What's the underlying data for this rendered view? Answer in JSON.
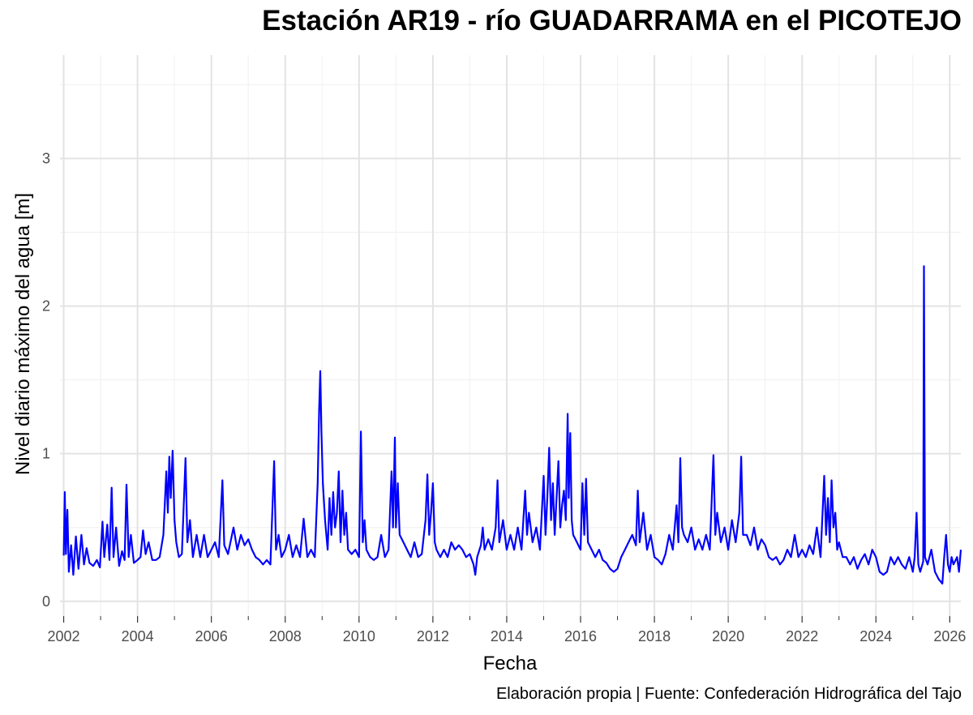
{
  "chart_data": {
    "type": "line",
    "title": "Estación AR19 - río GUADARRAMA en el PICOTEJO",
    "xlabel": "Fecha",
    "ylabel": "Nivel diario máximo del agua [m]",
    "caption": "Elaboración propia | Fuente: Confederación Hidrográfica del Tajo",
    "xlim": [
      2001.9,
      2026.3
    ],
    "ylim": [
      -0.1,
      3.7
    ],
    "x_ticks": [
      "2002",
      "2004",
      "2006",
      "2008",
      "2010",
      "2012",
      "2014",
      "2016",
      "2018",
      "2020",
      "2022",
      "2024",
      "2026"
    ],
    "y_ticks": [
      "0",
      "1",
      "2",
      "3"
    ],
    "grid": true,
    "line_color": "#0000ff",
    "series": [
      {
        "points": [
          [
            2002.0,
            0.31
          ],
          [
            2002.03,
            0.74
          ],
          [
            2002.06,
            0.32
          ],
          [
            2002.1,
            0.62
          ],
          [
            2002.14,
            0.2
          ],
          [
            2002.2,
            0.38
          ],
          [
            2002.26,
            0.18
          ],
          [
            2002.33,
            0.44
          ],
          [
            2002.4,
            0.22
          ],
          [
            2002.48,
            0.45
          ],
          [
            2002.55,
            0.25
          ],
          [
            2002.62,
            0.36
          ],
          [
            2002.7,
            0.26
          ],
          [
            2002.8,
            0.24
          ],
          [
            2002.9,
            0.28
          ],
          [
            2002.98,
            0.23
          ],
          [
            2003.05,
            0.54
          ],
          [
            2003.1,
            0.3
          ],
          [
            2003.18,
            0.52
          ],
          [
            2003.24,
            0.28
          ],
          [
            2003.3,
            0.77
          ],
          [
            2003.35,
            0.3
          ],
          [
            2003.42,
            0.5
          ],
          [
            2003.5,
            0.24
          ],
          [
            2003.58,
            0.34
          ],
          [
            2003.65,
            0.28
          ],
          [
            2003.7,
            0.79
          ],
          [
            2003.76,
            0.3
          ],
          [
            2003.82,
            0.45
          ],
          [
            2003.9,
            0.26
          ],
          [
            2004.0,
            0.28
          ],
          [
            2004.08,
            0.3
          ],
          [
            2004.15,
            0.48
          ],
          [
            2004.22,
            0.32
          ],
          [
            2004.3,
            0.4
          ],
          [
            2004.4,
            0.28
          ],
          [
            2004.5,
            0.28
          ],
          [
            2004.6,
            0.3
          ],
          [
            2004.7,
            0.45
          ],
          [
            2004.78,
            0.88
          ],
          [
            2004.82,
            0.6
          ],
          [
            2004.86,
            0.98
          ],
          [
            2004.9,
            0.7
          ],
          [
            2004.95,
            1.02
          ],
          [
            2005.0,
            0.55
          ],
          [
            2005.05,
            0.4
          ],
          [
            2005.12,
            0.3
          ],
          [
            2005.2,
            0.32
          ],
          [
            2005.3,
            0.97
          ],
          [
            2005.35,
            0.4
          ],
          [
            2005.42,
            0.55
          ],
          [
            2005.5,
            0.3
          ],
          [
            2005.6,
            0.45
          ],
          [
            2005.7,
            0.3
          ],
          [
            2005.8,
            0.45
          ],
          [
            2005.9,
            0.3
          ],
          [
            2006.0,
            0.35
          ],
          [
            2006.1,
            0.4
          ],
          [
            2006.2,
            0.3
          ],
          [
            2006.3,
            0.82
          ],
          [
            2006.35,
            0.38
          ],
          [
            2006.45,
            0.32
          ],
          [
            2006.6,
            0.5
          ],
          [
            2006.7,
            0.35
          ],
          [
            2006.8,
            0.45
          ],
          [
            2006.9,
            0.38
          ],
          [
            2007.0,
            0.42
          ],
          [
            2007.1,
            0.35
          ],
          [
            2007.2,
            0.3
          ],
          [
            2007.3,
            0.28
          ],
          [
            2007.4,
            0.25
          ],
          [
            2007.5,
            0.28
          ],
          [
            2007.6,
            0.25
          ],
          [
            2007.7,
            0.95
          ],
          [
            2007.75,
            0.35
          ],
          [
            2007.82,
            0.45
          ],
          [
            2007.9,
            0.3
          ],
          [
            2008.0,
            0.35
          ],
          [
            2008.1,
            0.45
          ],
          [
            2008.2,
            0.3
          ],
          [
            2008.3,
            0.38
          ],
          [
            2008.4,
            0.3
          ],
          [
            2008.5,
            0.56
          ],
          [
            2008.6,
            0.3
          ],
          [
            2008.7,
            0.35
          ],
          [
            2008.8,
            0.3
          ],
          [
            2008.88,
            0.8
          ],
          [
            2008.92,
            1.3
          ],
          [
            2008.95,
            1.56
          ],
          [
            2008.98,
            1.15
          ],
          [
            2009.02,
            0.8
          ],
          [
            2009.08,
            0.55
          ],
          [
            2009.15,
            0.35
          ],
          [
            2009.2,
            0.7
          ],
          [
            2009.25,
            0.45
          ],
          [
            2009.3,
            0.74
          ],
          [
            2009.35,
            0.5
          ],
          [
            2009.4,
            0.6
          ],
          [
            2009.45,
            0.88
          ],
          [
            2009.5,
            0.4
          ],
          [
            2009.55,
            0.75
          ],
          [
            2009.6,
            0.45
          ],
          [
            2009.65,
            0.6
          ],
          [
            2009.7,
            0.35
          ],
          [
            2009.8,
            0.32
          ],
          [
            2009.9,
            0.35
          ],
          [
            2010.0,
            0.3
          ],
          [
            2010.05,
            1.15
          ],
          [
            2010.1,
            0.4
          ],
          [
            2010.15,
            0.55
          ],
          [
            2010.2,
            0.35
          ],
          [
            2010.3,
            0.3
          ],
          [
            2010.4,
            0.28
          ],
          [
            2010.5,
            0.3
          ],
          [
            2010.6,
            0.45
          ],
          [
            2010.7,
            0.3
          ],
          [
            2010.8,
            0.35
          ],
          [
            2010.88,
            0.88
          ],
          [
            2010.92,
            0.5
          ],
          [
            2010.97,
            1.11
          ],
          [
            2011.0,
            0.5
          ],
          [
            2011.05,
            0.8
          ],
          [
            2011.1,
            0.45
          ],
          [
            2011.2,
            0.4
          ],
          [
            2011.3,
            0.35
          ],
          [
            2011.4,
            0.3
          ],
          [
            2011.5,
            0.4
          ],
          [
            2011.6,
            0.3
          ],
          [
            2011.7,
            0.32
          ],
          [
            2011.8,
            0.55
          ],
          [
            2011.85,
            0.86
          ],
          [
            2011.9,
            0.45
          ],
          [
            2011.95,
            0.6
          ],
          [
            2012.0,
            0.8
          ],
          [
            2012.05,
            0.4
          ],
          [
            2012.1,
            0.35
          ],
          [
            2012.2,
            0.3
          ],
          [
            2012.3,
            0.35
          ],
          [
            2012.4,
            0.3
          ],
          [
            2012.5,
            0.4
          ],
          [
            2012.6,
            0.35
          ],
          [
            2012.7,
            0.38
          ],
          [
            2012.8,
            0.35
          ],
          [
            2012.9,
            0.3
          ],
          [
            2013.0,
            0.32
          ],
          [
            2013.1,
            0.25
          ],
          [
            2013.15,
            0.18
          ],
          [
            2013.2,
            0.3
          ],
          [
            2013.3,
            0.38
          ],
          [
            2013.35,
            0.5
          ],
          [
            2013.4,
            0.35
          ],
          [
            2013.5,
            0.42
          ],
          [
            2013.6,
            0.35
          ],
          [
            2013.7,
            0.5
          ],
          [
            2013.75,
            0.82
          ],
          [
            2013.8,
            0.4
          ],
          [
            2013.9,
            0.55
          ],
          [
            2014.0,
            0.35
          ],
          [
            2014.1,
            0.45
          ],
          [
            2014.2,
            0.35
          ],
          [
            2014.3,
            0.5
          ],
          [
            2014.4,
            0.35
          ],
          [
            2014.5,
            0.75
          ],
          [
            2014.55,
            0.45
          ],
          [
            2014.6,
            0.6
          ],
          [
            2014.7,
            0.4
          ],
          [
            2014.8,
            0.5
          ],
          [
            2014.9,
            0.35
          ],
          [
            2015.0,
            0.85
          ],
          [
            2015.05,
            0.45
          ],
          [
            2015.1,
            0.7
          ],
          [
            2015.15,
            1.04
          ],
          [
            2015.2,
            0.55
          ],
          [
            2015.25,
            0.8
          ],
          [
            2015.3,
            0.45
          ],
          [
            2015.4,
            0.95
          ],
          [
            2015.45,
            0.5
          ],
          [
            2015.5,
            0.65
          ],
          [
            2015.55,
            0.75
          ],
          [
            2015.6,
            0.55
          ],
          [
            2015.65,
            1.27
          ],
          [
            2015.68,
            0.7
          ],
          [
            2015.72,
            1.14
          ],
          [
            2015.76,
            0.55
          ],
          [
            2015.8,
            0.45
          ],
          [
            2015.9,
            0.4
          ],
          [
            2016.0,
            0.35
          ],
          [
            2016.05,
            0.8
          ],
          [
            2016.1,
            0.45
          ],
          [
            2016.15,
            0.83
          ],
          [
            2016.2,
            0.4
          ],
          [
            2016.3,
            0.35
          ],
          [
            2016.4,
            0.3
          ],
          [
            2016.5,
            0.35
          ],
          [
            2016.6,
            0.28
          ],
          [
            2016.7,
            0.26
          ],
          [
            2016.8,
            0.22
          ],
          [
            2016.9,
            0.2
          ],
          [
            2017.0,
            0.22
          ],
          [
            2017.1,
            0.3
          ],
          [
            2017.2,
            0.35
          ],
          [
            2017.3,
            0.4
          ],
          [
            2017.4,
            0.45
          ],
          [
            2017.5,
            0.38
          ],
          [
            2017.55,
            0.75
          ],
          [
            2017.6,
            0.4
          ],
          [
            2017.7,
            0.6
          ],
          [
            2017.8,
            0.35
          ],
          [
            2017.9,
            0.45
          ],
          [
            2018.0,
            0.3
          ],
          [
            2018.1,
            0.28
          ],
          [
            2018.2,
            0.25
          ],
          [
            2018.3,
            0.32
          ],
          [
            2018.4,
            0.45
          ],
          [
            2018.5,
            0.35
          ],
          [
            2018.6,
            0.65
          ],
          [
            2018.65,
            0.4
          ],
          [
            2018.7,
            0.97
          ],
          [
            2018.75,
            0.5
          ],
          [
            2018.8,
            0.45
          ],
          [
            2018.9,
            0.4
          ],
          [
            2019.0,
            0.5
          ],
          [
            2019.1,
            0.35
          ],
          [
            2019.2,
            0.42
          ],
          [
            2019.3,
            0.35
          ],
          [
            2019.4,
            0.45
          ],
          [
            2019.5,
            0.35
          ],
          [
            2019.6,
            0.99
          ],
          [
            2019.65,
            0.45
          ],
          [
            2019.7,
            0.6
          ],
          [
            2019.8,
            0.4
          ],
          [
            2019.9,
            0.5
          ],
          [
            2020.0,
            0.35
          ],
          [
            2020.1,
            0.55
          ],
          [
            2020.2,
            0.4
          ],
          [
            2020.3,
            0.6
          ],
          [
            2020.35,
            0.98
          ],
          [
            2020.4,
            0.45
          ],
          [
            2020.5,
            0.45
          ],
          [
            2020.6,
            0.38
          ],
          [
            2020.7,
            0.5
          ],
          [
            2020.8,
            0.35
          ],
          [
            2020.9,
            0.42
          ],
          [
            2021.0,
            0.38
          ],
          [
            2021.1,
            0.3
          ],
          [
            2021.2,
            0.28
          ],
          [
            2021.3,
            0.3
          ],
          [
            2021.4,
            0.25
          ],
          [
            2021.5,
            0.28
          ],
          [
            2021.6,
            0.35
          ],
          [
            2021.7,
            0.3
          ],
          [
            2021.8,
            0.45
          ],
          [
            2021.9,
            0.3
          ],
          [
            2022.0,
            0.35
          ],
          [
            2022.1,
            0.3
          ],
          [
            2022.2,
            0.38
          ],
          [
            2022.3,
            0.32
          ],
          [
            2022.4,
            0.5
          ],
          [
            2022.5,
            0.3
          ],
          [
            2022.6,
            0.85
          ],
          [
            2022.65,
            0.45
          ],
          [
            2022.7,
            0.7
          ],
          [
            2022.75,
            0.4
          ],
          [
            2022.8,
            0.82
          ],
          [
            2022.85,
            0.5
          ],
          [
            2022.9,
            0.6
          ],
          [
            2022.95,
            0.35
          ],
          [
            2023.0,
            0.4
          ],
          [
            2023.1,
            0.3
          ],
          [
            2023.2,
            0.3
          ],
          [
            2023.3,
            0.25
          ],
          [
            2023.4,
            0.3
          ],
          [
            2023.5,
            0.22
          ],
          [
            2023.6,
            0.28
          ],
          [
            2023.7,
            0.32
          ],
          [
            2023.8,
            0.25
          ],
          [
            2023.9,
            0.35
          ],
          [
            2024.0,
            0.3
          ],
          [
            2024.1,
            0.2
          ],
          [
            2024.2,
            0.18
          ],
          [
            2024.3,
            0.2
          ],
          [
            2024.4,
            0.3
          ],
          [
            2024.5,
            0.25
          ],
          [
            2024.6,
            0.3
          ],
          [
            2024.7,
            0.25
          ],
          [
            2024.8,
            0.22
          ],
          [
            2024.9,
            0.3
          ],
          [
            2025.0,
            0.2
          ],
          [
            2025.05,
            0.3
          ],
          [
            2025.1,
            0.6
          ],
          [
            2025.15,
            0.25
          ],
          [
            2025.2,
            0.2
          ],
          [
            2025.28,
            0.27
          ],
          [
            2025.3,
            2.27
          ],
          [
            2025.33,
            0.3
          ],
          [
            2025.4,
            0.25
          ],
          [
            2025.5,
            0.35
          ],
          [
            2025.6,
            0.2
          ],
          [
            2025.7,
            0.15
          ],
          [
            2025.8,
            0.12
          ],
          [
            2025.85,
            0.3
          ],
          [
            2025.9,
            0.45
          ],
          [
            2025.95,
            0.25
          ],
          [
            2026.0,
            0.2
          ],
          [
            2026.05,
            0.3
          ],
          [
            2026.1,
            0.25
          ],
          [
            2026.2,
            0.3
          ],
          [
            2026.25,
            0.2
          ],
          [
            2026.3,
            0.35
          ]
        ]
      }
    ]
  }
}
